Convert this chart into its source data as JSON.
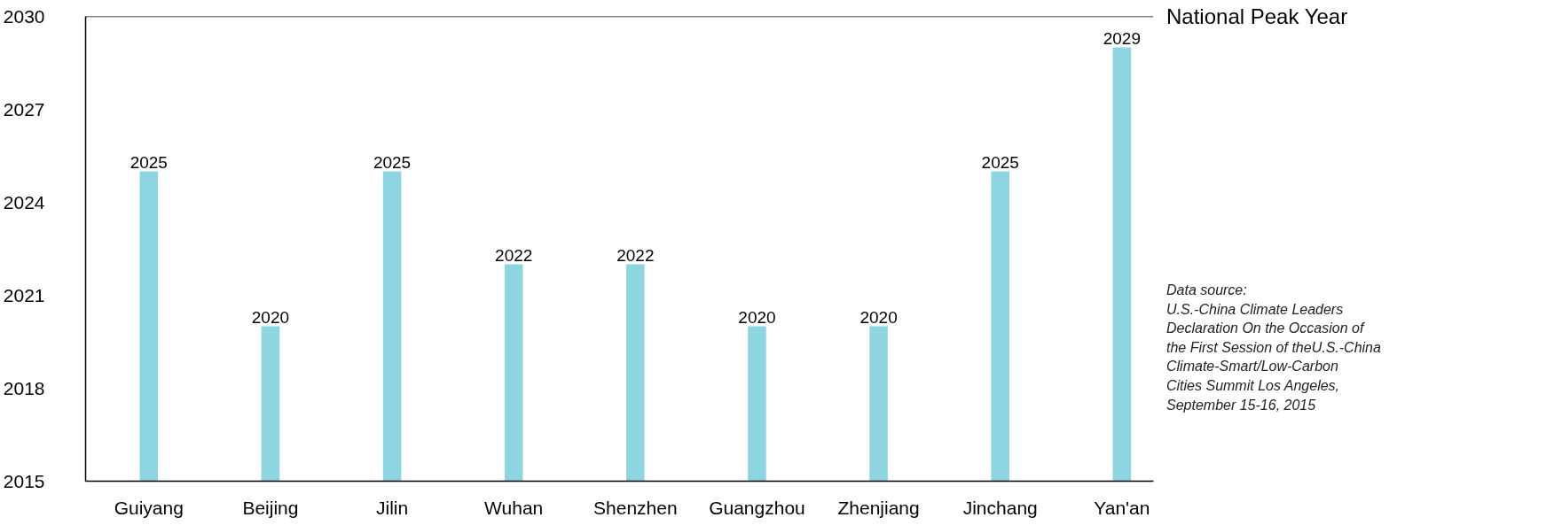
{
  "chart_data": {
    "type": "bar",
    "categories": [
      "Guiyang",
      "Beijing",
      "Jilin",
      "Wuhan",
      "Shenzhen",
      "Guangzhou",
      "Zhenjiang",
      "Jinchang",
      "Yan'an"
    ],
    "values": [
      2025,
      2020,
      2025,
      2022,
      2022,
      2020,
      2020,
      2025,
      2029
    ],
    "color": "#8dd5e0",
    "data_labels": true,
    "ylim": [
      2015,
      2030
    ],
    "yticks": [
      2015,
      2018,
      2021,
      2024,
      2027,
      2030
    ],
    "grid": false,
    "ref_lines": [
      {
        "axis": "y",
        "value": 2030,
        "label": "National Peak Year",
        "color": "#000000"
      }
    ],
    "annotations": [
      "Data source:\nU.S.-China Climate Leaders\nDeclaration On the Occasion of\nthe First Session of theU.S.-China\nClimate-Smart/Low-Carbon\nCities Summit Los Angeles,\nSeptember 15-16, 2015"
    ]
  }
}
